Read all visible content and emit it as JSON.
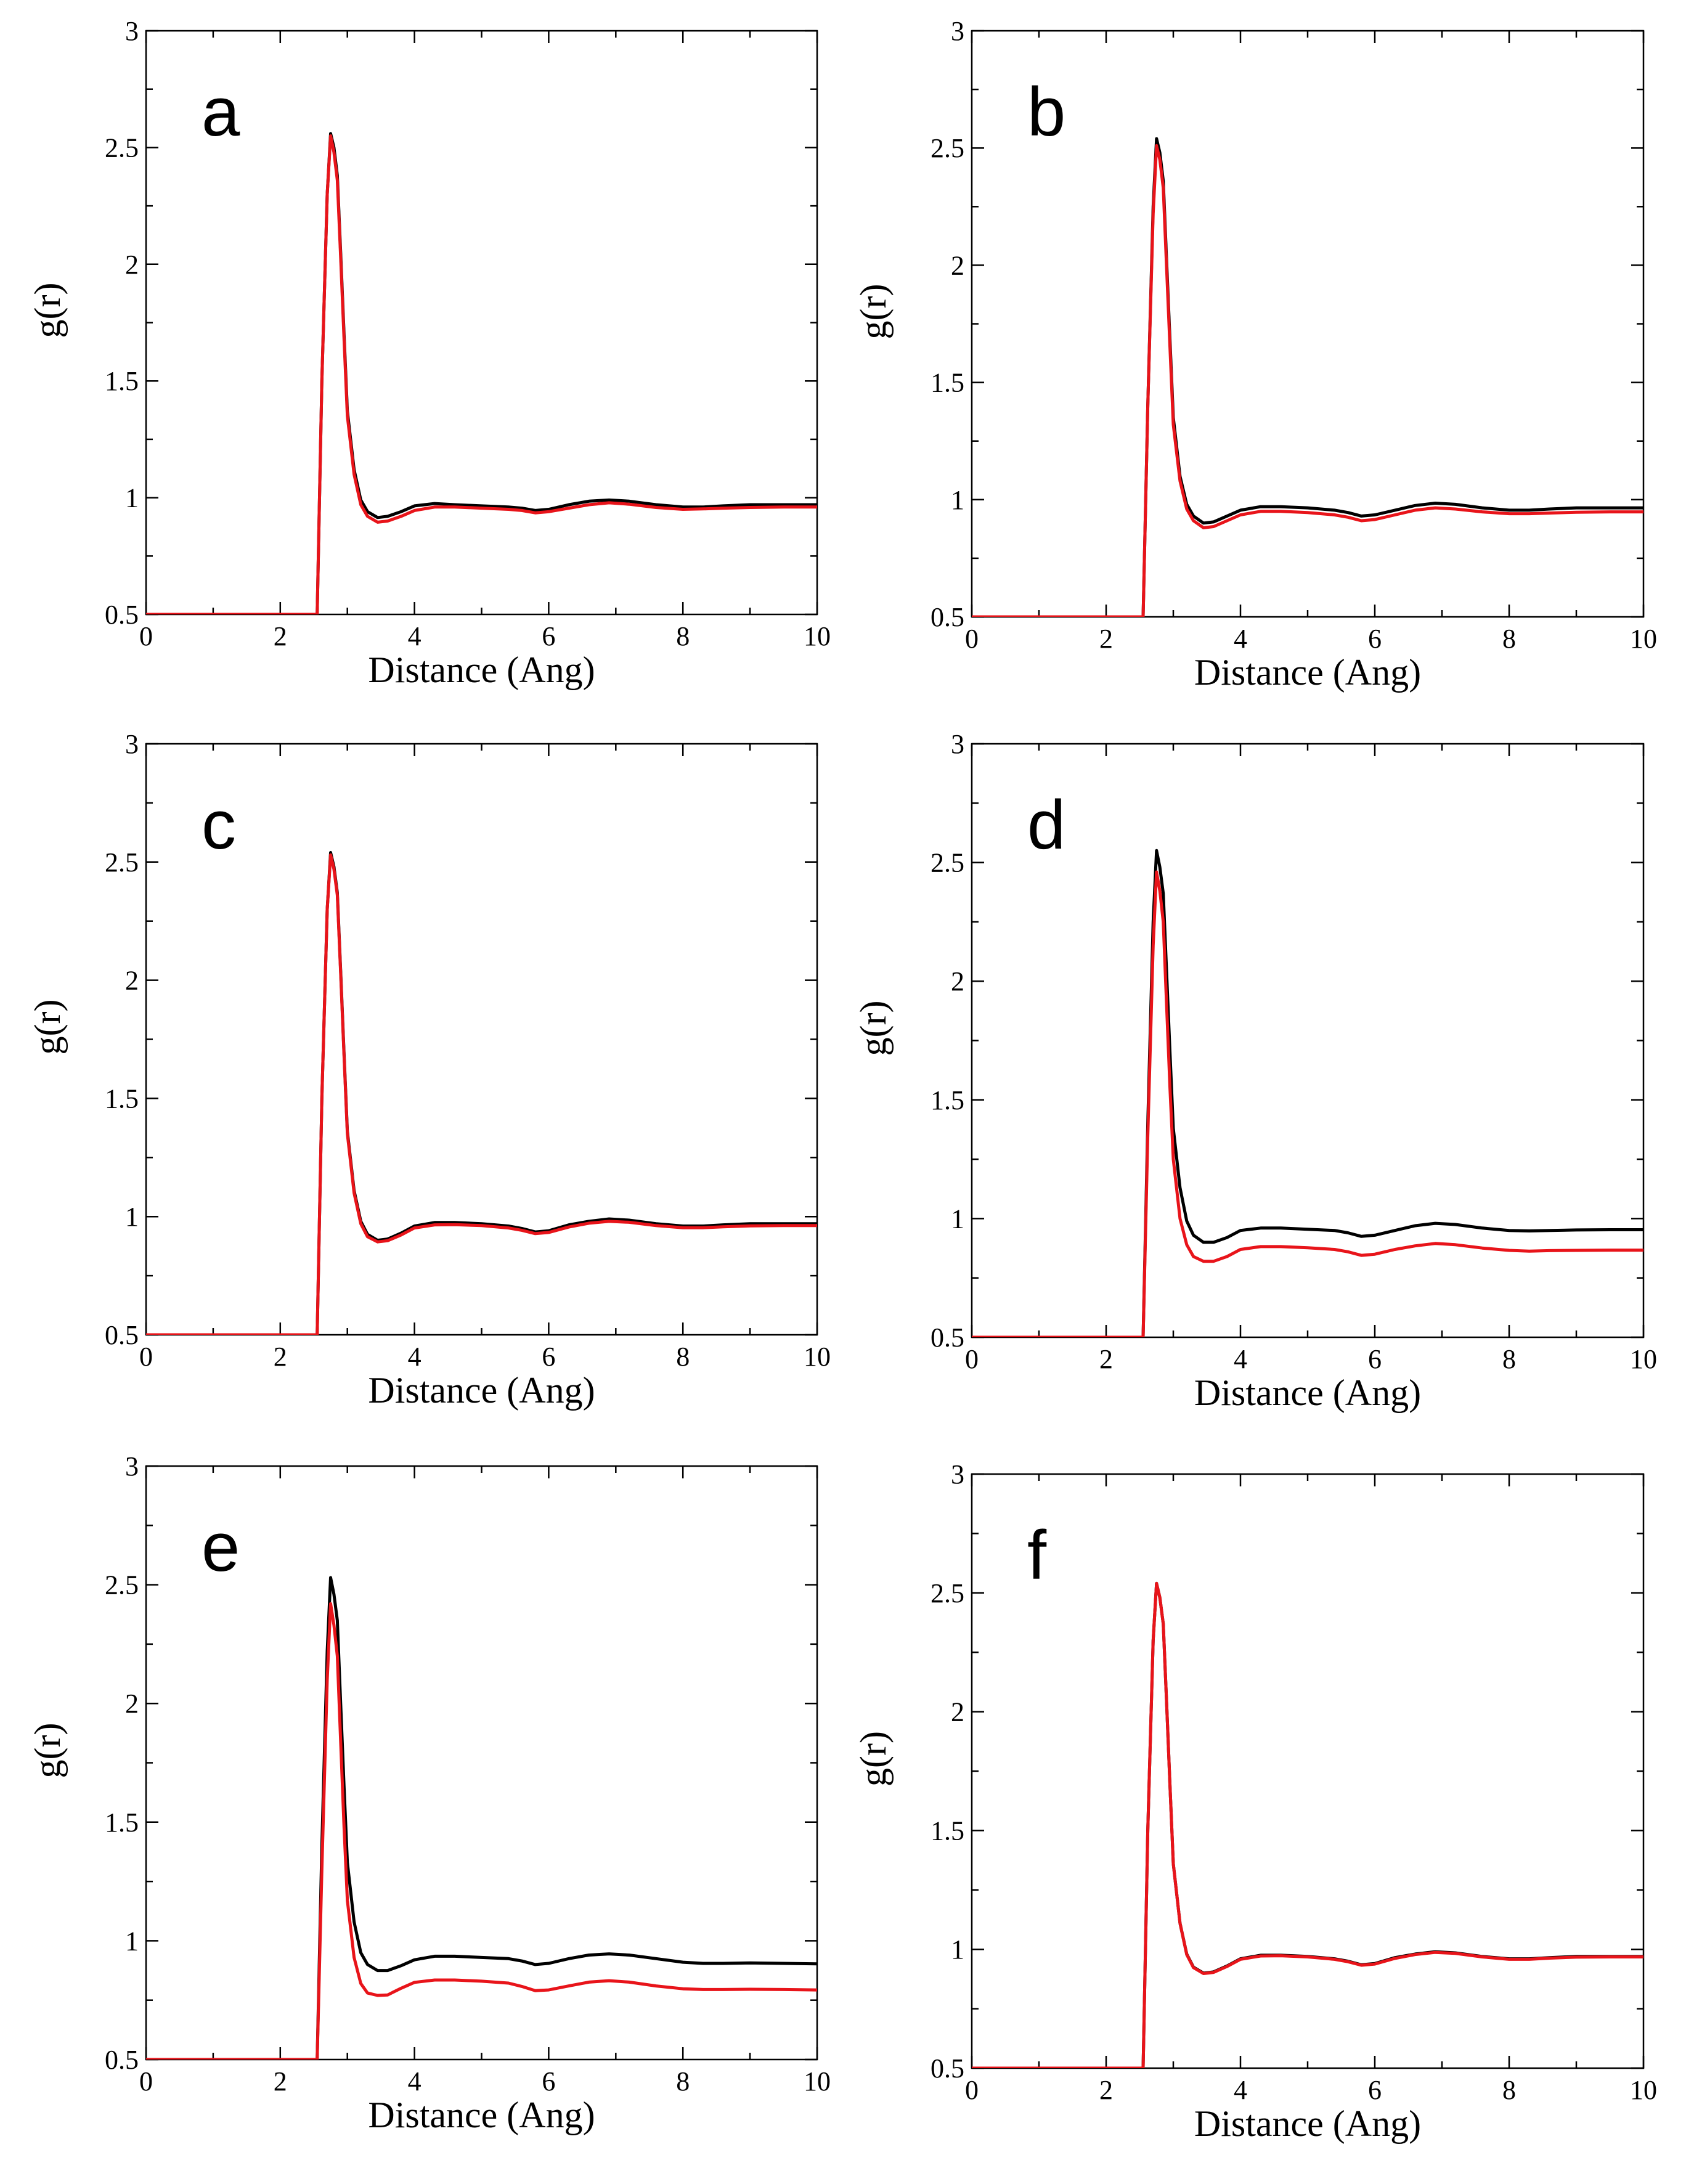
{
  "colors": {
    "series_1": "#000000",
    "series_2": "#e8141a"
  },
  "chart_data": [
    {
      "type": "line",
      "panel": "a",
      "title": "",
      "xlabel": "Distance (Ang)",
      "ylabel": "g(r)",
      "xlim": [
        0,
        10
      ],
      "ylim": [
        0.5,
        3
      ],
      "xticks": [
        "0",
        "2",
        "4",
        "6",
        "8",
        "10"
      ],
      "yticks": [
        "0.5",
        "1",
        "1.5",
        "2",
        "2.5",
        "3"
      ],
      "series": [
        {
          "name": "series_1",
          "color": "#000000",
          "x": [
            0,
            2.55,
            2.62,
            2.7,
            2.75,
            2.8,
            2.85,
            2.9,
            2.95,
            3.0,
            3.1,
            3.2,
            3.3,
            3.45,
            3.6,
            3.8,
            4.0,
            4.3,
            4.6,
            5.0,
            5.4,
            5.6,
            5.8,
            6.0,
            6.3,
            6.6,
            6.9,
            7.2,
            7.6,
            8.0,
            8.3,
            8.6,
            9.0,
            9.5,
            10.0
          ],
          "y": [
            0.5,
            0.5,
            1.5,
            2.3,
            2.56,
            2.5,
            2.38,
            2.05,
            1.7,
            1.37,
            1.12,
            0.99,
            0.94,
            0.915,
            0.92,
            0.94,
            0.965,
            0.975,
            0.97,
            0.965,
            0.96,
            0.955,
            0.945,
            0.95,
            0.97,
            0.985,
            0.99,
            0.985,
            0.97,
            0.96,
            0.96,
            0.965,
            0.97,
            0.97,
            0.97
          ]
        },
        {
          "name": "series_2",
          "color": "#e8141a",
          "x": [
            0,
            2.55,
            2.62,
            2.7,
            2.75,
            2.8,
            2.85,
            2.9,
            2.95,
            3.0,
            3.1,
            3.2,
            3.3,
            3.45,
            3.6,
            3.8,
            4.0,
            4.3,
            4.6,
            5.0,
            5.4,
            5.6,
            5.8,
            6.0,
            6.3,
            6.6,
            6.9,
            7.2,
            7.6,
            8.0,
            8.3,
            8.6,
            9.0,
            9.5,
            10.0
          ],
          "y": [
            0.5,
            0.5,
            1.5,
            2.3,
            2.55,
            2.48,
            2.36,
            2.03,
            1.68,
            1.35,
            1.1,
            0.97,
            0.92,
            0.895,
            0.9,
            0.92,
            0.945,
            0.96,
            0.96,
            0.955,
            0.95,
            0.945,
            0.935,
            0.94,
            0.955,
            0.97,
            0.978,
            0.972,
            0.958,
            0.95,
            0.952,
            0.955,
            0.958,
            0.96,
            0.96
          ]
        }
      ]
    },
    {
      "type": "line",
      "panel": "b",
      "title": "",
      "xlabel": "Distance (Ang)",
      "ylabel": "g(r)",
      "xlim": [
        0,
        10
      ],
      "ylim": [
        0.5,
        3
      ],
      "xticks": [
        "0",
        "2",
        "4",
        "6",
        "8",
        "10"
      ],
      "yticks": [
        "0.5",
        "1",
        "1.5",
        "2",
        "2.5",
        "3"
      ],
      "series": [
        {
          "name": "series_1",
          "color": "#000000",
          "x": [
            0,
            2.55,
            2.62,
            2.7,
            2.75,
            2.8,
            2.85,
            2.9,
            2.95,
            3.0,
            3.1,
            3.2,
            3.3,
            3.45,
            3.6,
            3.8,
            4.0,
            4.3,
            4.6,
            5.0,
            5.4,
            5.6,
            5.8,
            6.0,
            6.3,
            6.6,
            6.9,
            7.2,
            7.6,
            8.0,
            8.3,
            8.6,
            9.0,
            9.5,
            10.0
          ],
          "y": [
            0.5,
            0.5,
            1.4,
            2.25,
            2.54,
            2.48,
            2.36,
            2.02,
            1.68,
            1.35,
            1.1,
            0.98,
            0.93,
            0.9,
            0.905,
            0.93,
            0.955,
            0.97,
            0.97,
            0.965,
            0.955,
            0.945,
            0.93,
            0.935,
            0.955,
            0.975,
            0.985,
            0.98,
            0.965,
            0.955,
            0.955,
            0.96,
            0.965,
            0.965,
            0.965
          ]
        },
        {
          "name": "series_2",
          "color": "#e8141a",
          "x": [
            0,
            2.55,
            2.62,
            2.7,
            2.75,
            2.8,
            2.85,
            2.9,
            2.95,
            3.0,
            3.1,
            3.2,
            3.3,
            3.45,
            3.6,
            3.8,
            4.0,
            4.3,
            4.6,
            5.0,
            5.4,
            5.6,
            5.8,
            6.0,
            6.3,
            6.6,
            6.9,
            7.2,
            7.6,
            8.0,
            8.3,
            8.6,
            9.0,
            9.5,
            10.0
          ],
          "y": [
            0.5,
            0.5,
            1.4,
            2.22,
            2.51,
            2.45,
            2.33,
            1.99,
            1.65,
            1.32,
            1.08,
            0.96,
            0.91,
            0.88,
            0.885,
            0.91,
            0.935,
            0.95,
            0.95,
            0.945,
            0.935,
            0.925,
            0.91,
            0.915,
            0.935,
            0.955,
            0.965,
            0.96,
            0.948,
            0.94,
            0.94,
            0.943,
            0.946,
            0.948,
            0.948
          ]
        }
      ]
    },
    {
      "type": "line",
      "panel": "c",
      "title": "",
      "xlabel": "Distance (Ang)",
      "ylabel": "g(r)",
      "xlim": [
        0,
        10
      ],
      "ylim": [
        0.5,
        3
      ],
      "xticks": [
        "0",
        "2",
        "4",
        "6",
        "8",
        "10"
      ],
      "yticks": [
        "0.5",
        "1",
        "1.5",
        "2",
        "2.5",
        "3"
      ],
      "series": [
        {
          "name": "series_1",
          "color": "#000000",
          "x": [
            0,
            2.55,
            2.62,
            2.7,
            2.75,
            2.8,
            2.85,
            2.9,
            2.95,
            3.0,
            3.1,
            3.2,
            3.3,
            3.45,
            3.6,
            3.8,
            4.0,
            4.3,
            4.6,
            5.0,
            5.4,
            5.6,
            5.8,
            6.0,
            6.3,
            6.6,
            6.9,
            7.2,
            7.6,
            8.0,
            8.3,
            8.6,
            9.0,
            9.5,
            10.0
          ],
          "y": [
            0.5,
            0.5,
            1.5,
            2.3,
            2.54,
            2.48,
            2.37,
            2.04,
            1.69,
            1.36,
            1.11,
            0.98,
            0.925,
            0.9,
            0.905,
            0.93,
            0.96,
            0.975,
            0.975,
            0.97,
            0.96,
            0.95,
            0.935,
            0.94,
            0.965,
            0.98,
            0.99,
            0.985,
            0.97,
            0.96,
            0.96,
            0.965,
            0.97,
            0.97,
            0.97
          ]
        },
        {
          "name": "series_2",
          "color": "#e8141a",
          "x": [
            0,
            2.55,
            2.62,
            2.7,
            2.75,
            2.8,
            2.85,
            2.9,
            2.95,
            3.0,
            3.1,
            3.2,
            3.3,
            3.45,
            3.6,
            3.8,
            4.0,
            4.3,
            4.6,
            5.0,
            5.4,
            5.6,
            5.8,
            6.0,
            6.3,
            6.6,
            6.9,
            7.2,
            7.6,
            8.0,
            8.3,
            8.6,
            9.0,
            9.5,
            10.0
          ],
          "y": [
            0.5,
            0.5,
            1.5,
            2.3,
            2.53,
            2.47,
            2.36,
            2.03,
            1.68,
            1.35,
            1.1,
            0.97,
            0.915,
            0.893,
            0.898,
            0.922,
            0.952,
            0.965,
            0.966,
            0.962,
            0.952,
            0.942,
            0.928,
            0.933,
            0.956,
            0.972,
            0.98,
            0.976,
            0.962,
            0.953,
            0.953,
            0.957,
            0.961,
            0.962,
            0.962
          ]
        }
      ]
    },
    {
      "type": "line",
      "panel": "d",
      "title": "",
      "xlabel": "Distance (Ang)",
      "ylabel": "g(r)",
      "xlim": [
        0,
        10
      ],
      "ylim": [
        0.5,
        3
      ],
      "xticks": [
        "0",
        "2",
        "4",
        "6",
        "8",
        "10"
      ],
      "yticks": [
        "0.5",
        "1",
        "1.5",
        "2",
        "2.5",
        "3"
      ],
      "series": [
        {
          "name": "series_1",
          "color": "#000000",
          "x": [
            0,
            2.55,
            2.62,
            2.7,
            2.75,
            2.8,
            2.85,
            2.9,
            2.95,
            3.0,
            3.1,
            3.2,
            3.3,
            3.45,
            3.6,
            3.8,
            4.0,
            4.3,
            4.6,
            5.0,
            5.4,
            5.6,
            5.8,
            6.0,
            6.3,
            6.6,
            6.9,
            7.2,
            7.6,
            8.0,
            8.3,
            8.6,
            9.0,
            9.5,
            10.0
          ],
          "y": [
            0.5,
            0.5,
            1.4,
            2.25,
            2.55,
            2.48,
            2.37,
            2.04,
            1.7,
            1.38,
            1.13,
            0.99,
            0.93,
            0.9,
            0.9,
            0.92,
            0.95,
            0.96,
            0.96,
            0.955,
            0.95,
            0.94,
            0.925,
            0.93,
            0.95,
            0.97,
            0.98,
            0.975,
            0.96,
            0.95,
            0.948,
            0.95,
            0.952,
            0.953,
            0.953
          ]
        },
        {
          "name": "series_2",
          "color": "#e8141a",
          "x": [
            0,
            2.55,
            2.62,
            2.7,
            2.75,
            2.8,
            2.85,
            2.9,
            2.95,
            3.0,
            3.1,
            3.2,
            3.3,
            3.45,
            3.6,
            3.8,
            4.0,
            4.3,
            4.6,
            5.0,
            5.4,
            5.6,
            5.8,
            6.0,
            6.3,
            6.6,
            6.9,
            7.2,
            7.6,
            8.0,
            8.3,
            8.6,
            9.0,
            9.5,
            10.0
          ],
          "y": [
            0.5,
            0.5,
            1.35,
            2.15,
            2.46,
            2.38,
            2.25,
            1.9,
            1.55,
            1.25,
            1.0,
            0.89,
            0.84,
            0.82,
            0.82,
            0.84,
            0.87,
            0.882,
            0.882,
            0.877,
            0.87,
            0.86,
            0.845,
            0.85,
            0.87,
            0.885,
            0.895,
            0.89,
            0.876,
            0.866,
            0.863,
            0.865,
            0.866,
            0.867,
            0.867
          ]
        }
      ]
    },
    {
      "type": "line",
      "panel": "e",
      "title": "",
      "xlabel": "Distance (Ang)",
      "ylabel": "g(r)",
      "xlim": [
        0,
        10
      ],
      "ylim": [
        0.5,
        3
      ],
      "xticks": [
        "0",
        "2",
        "4",
        "6",
        "8",
        "10"
      ],
      "yticks": [
        "0.5",
        "1",
        "1.5",
        "2",
        "2.5",
        "3"
      ],
      "series": [
        {
          "name": "series_1",
          "color": "#000000",
          "x": [
            0,
            2.55,
            2.62,
            2.7,
            2.75,
            2.8,
            2.85,
            2.9,
            2.95,
            3.0,
            3.1,
            3.2,
            3.3,
            3.45,
            3.6,
            3.8,
            4.0,
            4.3,
            4.6,
            5.0,
            5.4,
            5.6,
            5.8,
            6.0,
            6.3,
            6.6,
            6.9,
            7.2,
            7.6,
            8.0,
            8.3,
            8.6,
            9.0,
            9.5,
            10.0
          ],
          "y": [
            0.5,
            0.5,
            1.4,
            2.22,
            2.53,
            2.46,
            2.35,
            2.0,
            1.65,
            1.33,
            1.08,
            0.95,
            0.9,
            0.875,
            0.875,
            0.895,
            0.92,
            0.935,
            0.935,
            0.93,
            0.925,
            0.915,
            0.9,
            0.905,
            0.925,
            0.94,
            0.945,
            0.94,
            0.925,
            0.91,
            0.905,
            0.905,
            0.907,
            0.905,
            0.903
          ]
        },
        {
          "name": "series_2",
          "color": "#e8141a",
          "x": [
            0,
            2.55,
            2.62,
            2.7,
            2.75,
            2.8,
            2.85,
            2.9,
            2.95,
            3.0,
            3.1,
            3.2,
            3.3,
            3.45,
            3.6,
            3.8,
            4.0,
            4.3,
            4.6,
            5.0,
            5.4,
            5.6,
            5.8,
            6.0,
            6.3,
            6.6,
            6.9,
            7.2,
            7.6,
            8.0,
            8.3,
            8.6,
            9.0,
            9.5,
            10.0
          ],
          "y": [
            0.5,
            0.5,
            1.3,
            2.1,
            2.42,
            2.33,
            2.2,
            1.84,
            1.48,
            1.17,
            0.93,
            0.82,
            0.78,
            0.77,
            0.772,
            0.8,
            0.825,
            0.835,
            0.835,
            0.83,
            0.822,
            0.808,
            0.79,
            0.793,
            0.81,
            0.826,
            0.832,
            0.826,
            0.81,
            0.798,
            0.795,
            0.795,
            0.796,
            0.795,
            0.793
          ]
        }
      ]
    },
    {
      "type": "line",
      "panel": "f",
      "title": "",
      "xlabel": "Distance (Ang)",
      "ylabel": "g(r)",
      "xlim": [
        0,
        10
      ],
      "ylim": [
        0.5,
        3
      ],
      "xticks": [
        "0",
        "2",
        "4",
        "6",
        "8",
        "10"
      ],
      "yticks": [
        "0.5",
        "1",
        "1.5",
        "2",
        "2.5",
        "3"
      ],
      "series": [
        {
          "name": "series_1",
          "color": "#000000",
          "x": [
            0,
            2.55,
            2.62,
            2.7,
            2.75,
            2.8,
            2.85,
            2.9,
            2.95,
            3.0,
            3.1,
            3.2,
            3.3,
            3.45,
            3.6,
            3.8,
            4.0,
            4.3,
            4.6,
            5.0,
            5.4,
            5.6,
            5.8,
            6.0,
            6.3,
            6.6,
            6.9,
            7.2,
            7.6,
            8.0,
            8.3,
            8.6,
            9.0,
            9.5,
            10.0
          ],
          "y": [
            0.5,
            0.5,
            1.5,
            2.3,
            2.54,
            2.48,
            2.37,
            2.04,
            1.69,
            1.36,
            1.11,
            0.98,
            0.925,
            0.9,
            0.905,
            0.93,
            0.96,
            0.975,
            0.975,
            0.97,
            0.96,
            0.95,
            0.935,
            0.94,
            0.965,
            0.98,
            0.99,
            0.985,
            0.97,
            0.96,
            0.96,
            0.965,
            0.97,
            0.97,
            0.97
          ]
        },
        {
          "name": "series_2",
          "color": "#e8141a",
          "x": [
            0,
            2.55,
            2.62,
            2.7,
            2.75,
            2.8,
            2.85,
            2.9,
            2.95,
            3.0,
            3.1,
            3.2,
            3.3,
            3.45,
            3.6,
            3.8,
            4.0,
            4.3,
            4.6,
            5.0,
            5.4,
            5.6,
            5.8,
            6.0,
            6.3,
            6.6,
            6.9,
            7.2,
            7.6,
            8.0,
            8.3,
            8.6,
            9.0,
            9.5,
            10.0
          ],
          "y": [
            0.5,
            0.5,
            1.5,
            2.3,
            2.54,
            2.48,
            2.37,
            2.04,
            1.69,
            1.36,
            1.11,
            0.978,
            0.923,
            0.898,
            0.903,
            0.928,
            0.958,
            0.972,
            0.973,
            0.968,
            0.958,
            0.948,
            0.933,
            0.938,
            0.962,
            0.978,
            0.987,
            0.983,
            0.968,
            0.958,
            0.958,
            0.963,
            0.967,
            0.968,
            0.968
          ]
        }
      ]
    }
  ]
}
